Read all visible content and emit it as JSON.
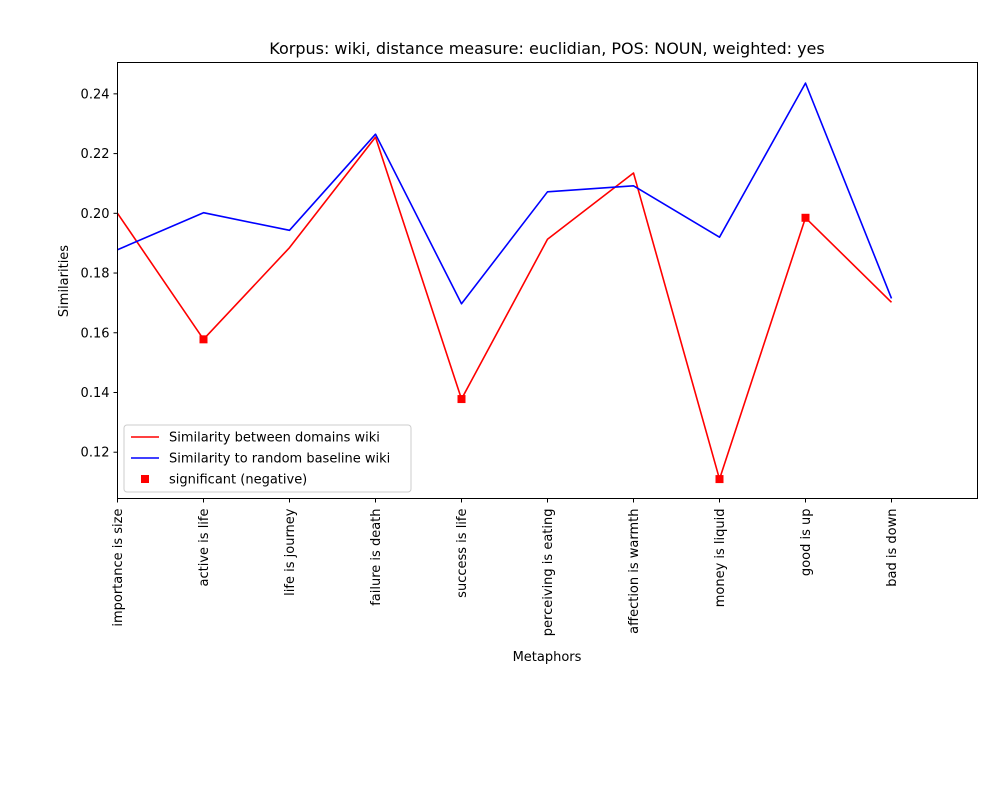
{
  "chart_data": {
    "type": "line",
    "title": "Korpus: wiki, distance measure: euclidian, POS: NOUN, weighted: yes",
    "xlabel": "Metaphors",
    "ylabel": "Similarities",
    "categories": [
      "importance is size",
      "active is life",
      "life is journey",
      "failure is death",
      "success is life",
      "perceiving is eating",
      "affection is warmth",
      "money is liquid",
      "good is up",
      "bad is down"
    ],
    "x_range": [
      0,
      10
    ],
    "ylim": [
      0.1045,
      0.2505
    ],
    "yticks": [
      0.12,
      0.14,
      0.16,
      0.18,
      0.2,
      0.22,
      0.24
    ],
    "ytick_labels": [
      "0.12",
      "0.14",
      "0.16",
      "0.18",
      "0.20",
      "0.22",
      "0.24"
    ],
    "grid": false,
    "legend_position": "lower-left",
    "series": [
      {
        "name": "Similarity between domains wiki",
        "color": "#ff0000",
        "values": [
          0.2,
          0.1578,
          0.1885,
          0.2255,
          0.1378,
          0.1913,
          0.2135,
          0.111,
          0.1985,
          0.1702
        ]
      },
      {
        "name": "Similarity to random baseline wiki",
        "color": "#0000ff",
        "values": [
          0.1878,
          0.2002,
          0.1943,
          0.2265,
          0.1697,
          0.2072,
          0.2092,
          0.192,
          0.2436,
          0.1715
        ]
      }
    ],
    "markers": {
      "name": "significant (negative)",
      "color": "#ff0000",
      "shape": "square",
      "points": [
        {
          "category": "active is life",
          "value": 0.1578
        },
        {
          "category": "success is life",
          "value": 0.1378
        },
        {
          "category": "money is liquid",
          "value": 0.111
        },
        {
          "category": "good is up",
          "value": 0.1985
        }
      ]
    }
  }
}
